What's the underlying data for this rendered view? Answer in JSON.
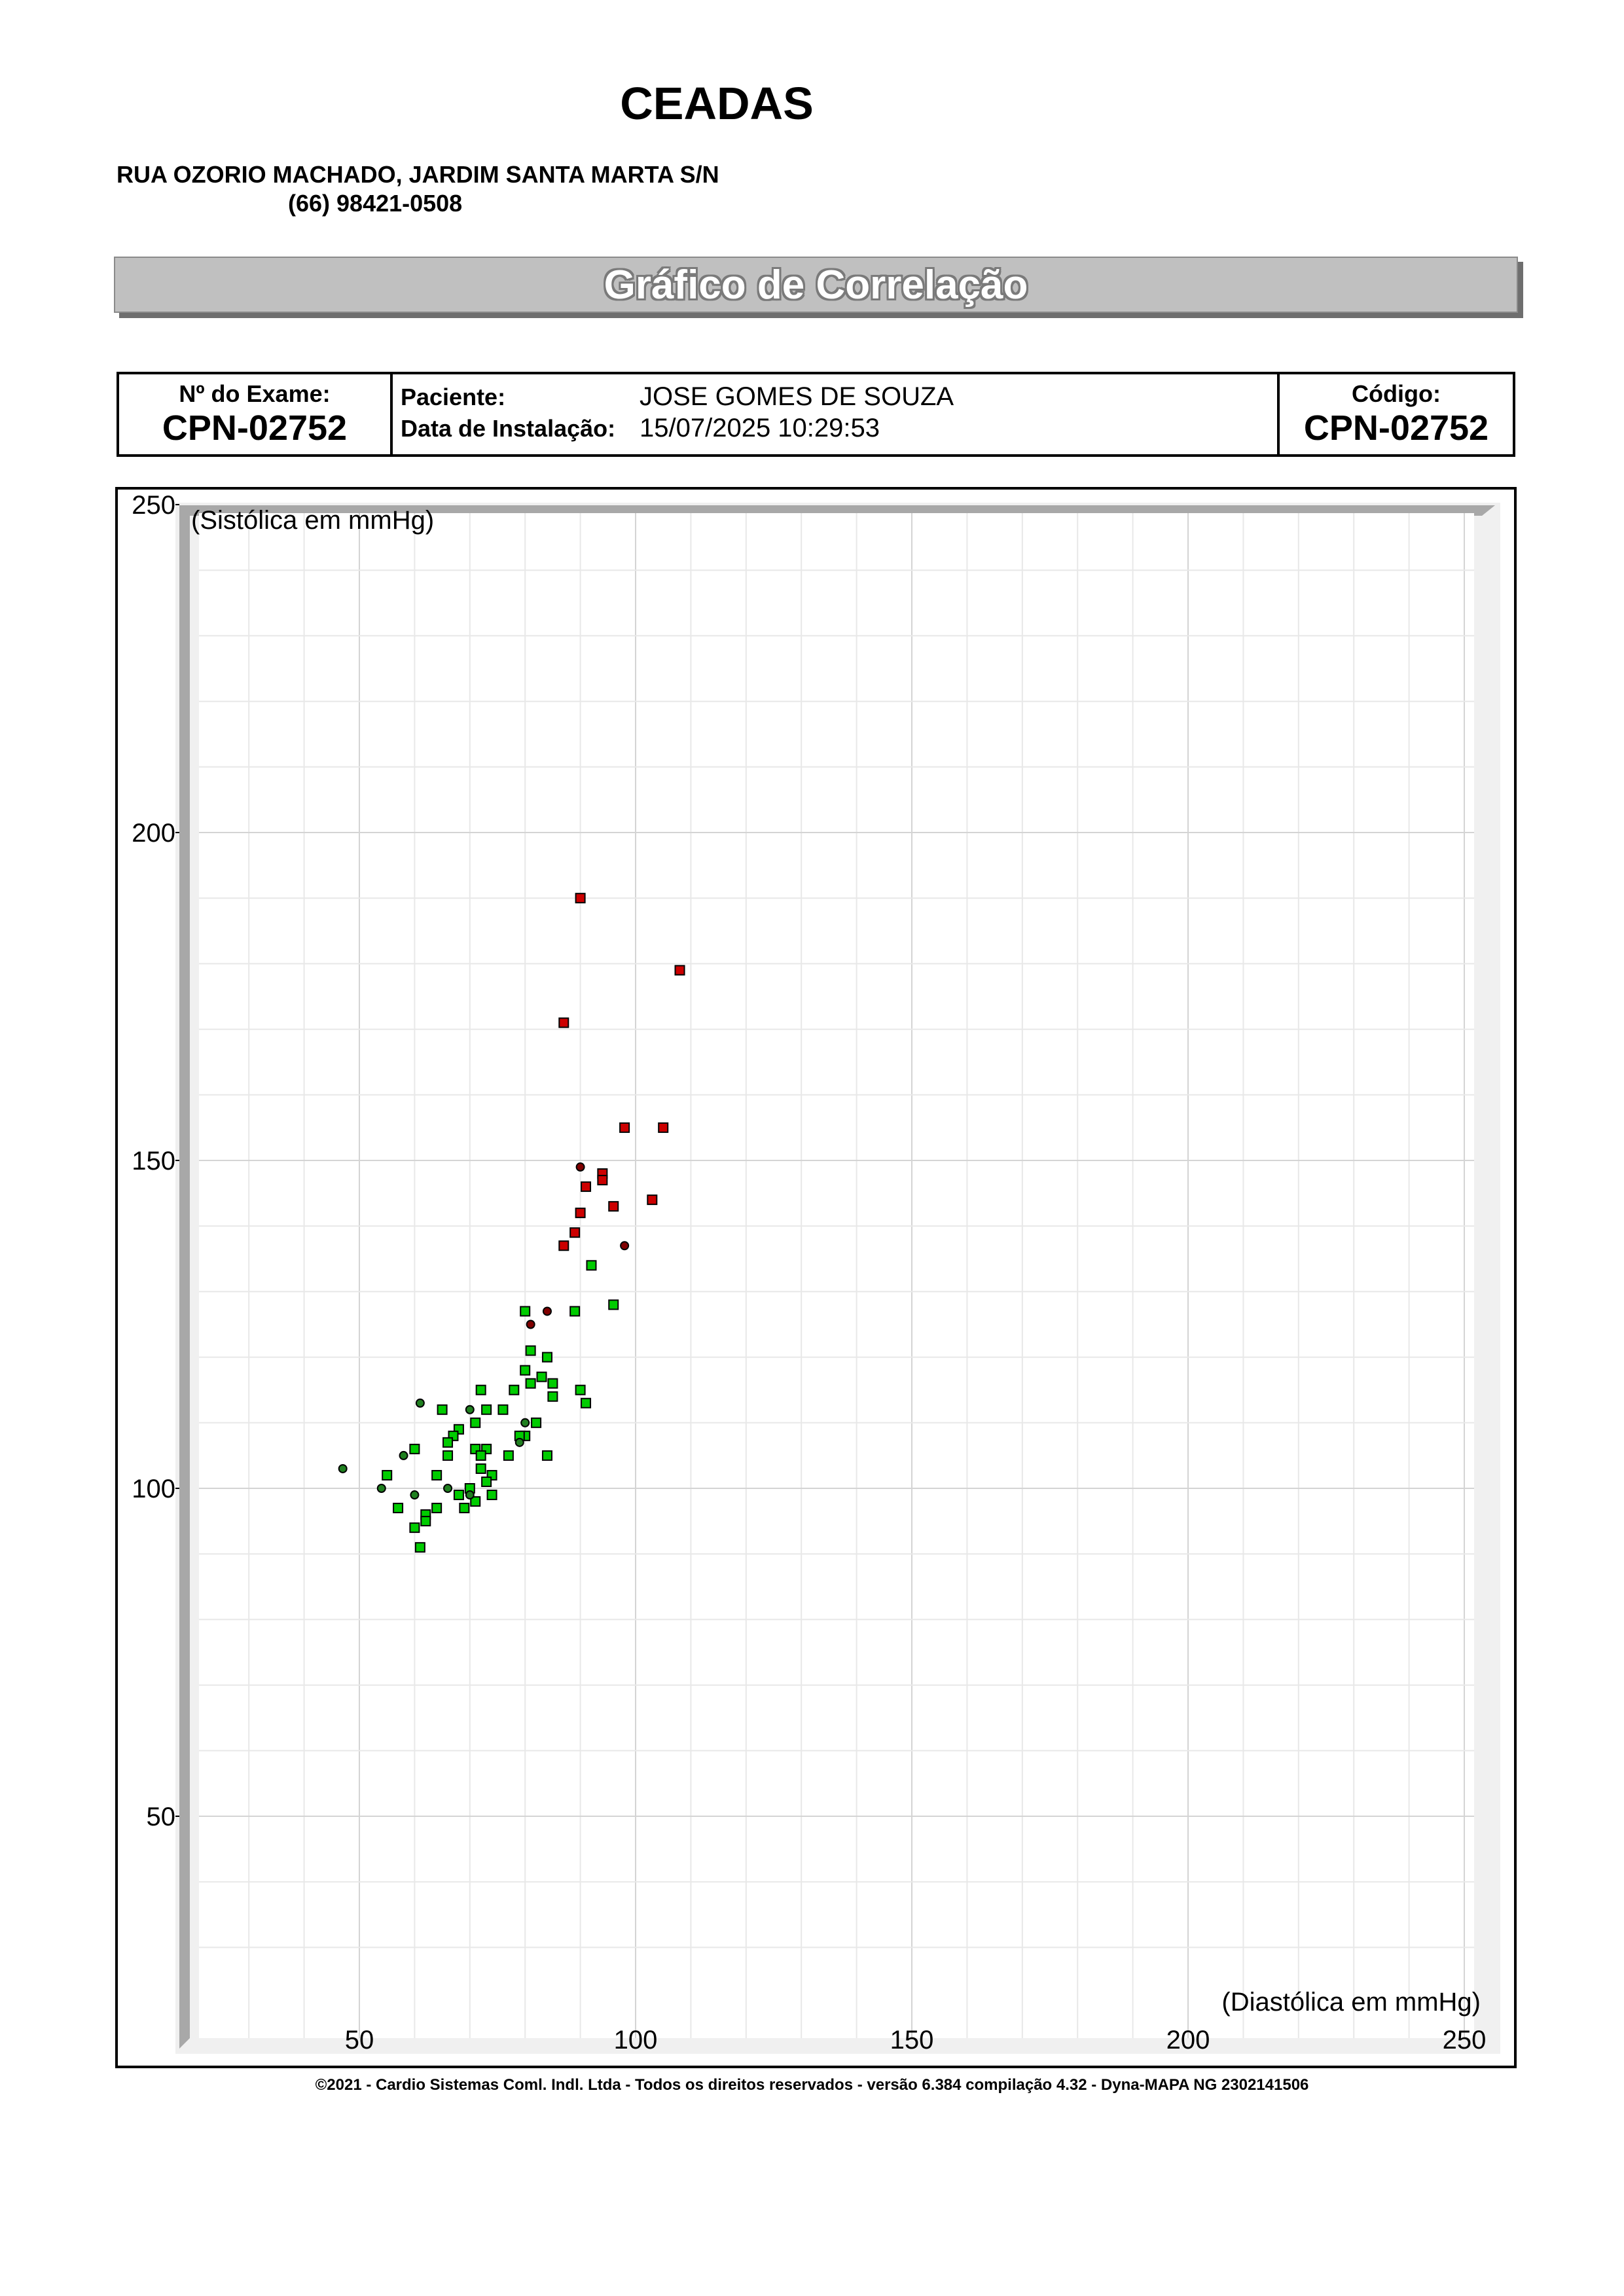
{
  "header": {
    "clinic_name": "CEADAS",
    "address": "RUA OZORIO MACHADO, JARDIM SANTA MARTA S/N",
    "phone": "(66) 98421-0508"
  },
  "title": "Gráfico de Correlação",
  "info": {
    "exam_label": "Nº do Exame:",
    "exam_number": "CPN-02752",
    "patient_label": "Paciente:",
    "patient_name": "JOSE GOMES DE  SOUZA",
    "install_label": "Data de Instalação:",
    "install_date": "15/07/2025 10:29:53",
    "code_label": "Código:",
    "code_value": "CPN-02752"
  },
  "colors": {
    "high": "#cc0000",
    "normal": "#00cc00",
    "high_dark": "#800000",
    "normal_dark": "#208020"
  },
  "chart_data": {
    "type": "scatter",
    "xlabel": "(Diastólica em mmHg)",
    "ylabel": "(Sistólica em mmHg)",
    "xlim": [
      20,
      253
    ],
    "ylim": [
      20,
      250
    ],
    "xticks": [
      50,
      100,
      150,
      200,
      250
    ],
    "yticks": [
      50,
      100,
      150,
      200,
      250
    ],
    "grid": true,
    "series": [
      {
        "color": "red",
        "marker": "square",
        "points": [
          [
            90,
            190
          ],
          [
            108,
            179
          ],
          [
            87,
            171
          ],
          [
            98,
            155
          ],
          [
            105,
            155
          ],
          [
            94,
            148
          ],
          [
            94,
            147
          ],
          [
            91,
            146
          ],
          [
            103,
            144
          ],
          [
            96,
            143
          ],
          [
            90,
            142
          ],
          [
            89,
            139
          ],
          [
            87,
            137
          ]
        ]
      },
      {
        "color": "dark-red",
        "marker": "circle",
        "points": [
          [
            90,
            149
          ],
          [
            98,
            137
          ],
          [
            84,
            127
          ],
          [
            81,
            125
          ]
        ]
      },
      {
        "color": "green",
        "marker": "square",
        "points": [
          [
            96,
            128
          ],
          [
            89,
            127
          ],
          [
            80,
            127
          ],
          [
            92,
            134
          ],
          [
            81,
            121
          ],
          [
            84,
            120
          ],
          [
            80,
            118
          ],
          [
            83,
            117
          ],
          [
            85,
            116
          ],
          [
            81,
            116
          ],
          [
            90,
            115
          ],
          [
            78,
            115
          ],
          [
            72,
            115
          ],
          [
            85,
            114
          ],
          [
            91,
            113
          ],
          [
            65,
            112
          ],
          [
            73,
            112
          ],
          [
            76,
            112
          ],
          [
            71,
            110
          ],
          [
            82,
            110
          ],
          [
            68,
            109
          ],
          [
            67,
            108
          ],
          [
            80,
            108
          ],
          [
            66,
            107
          ],
          [
            60,
            106
          ],
          [
            71,
            106
          ],
          [
            73,
            106
          ],
          [
            72,
            105
          ],
          [
            66,
            105
          ],
          [
            77,
            105
          ],
          [
            84,
            105
          ],
          [
            72,
            103
          ],
          [
            55,
            102
          ],
          [
            64,
            102
          ],
          [
            74,
            102
          ],
          [
            73,
            101
          ],
          [
            70,
            100
          ],
          [
            68,
            99
          ],
          [
            74,
            99
          ],
          [
            71,
            98
          ],
          [
            57,
            97
          ],
          [
            64,
            97
          ],
          [
            69,
            97
          ],
          [
            62,
            96
          ],
          [
            62,
            95
          ],
          [
            60,
            94
          ],
          [
            61,
            91
          ],
          [
            79,
            108
          ]
        ]
      },
      {
        "color": "dark-green",
        "marker": "circle",
        "points": [
          [
            47,
            103
          ],
          [
            54,
            100
          ],
          [
            61,
            113
          ],
          [
            58,
            105
          ],
          [
            60,
            99
          ],
          [
            66,
            100
          ],
          [
            70,
            112
          ],
          [
            79,
            107
          ],
          [
            80,
            110
          ],
          [
            70,
            99
          ]
        ]
      }
    ]
  },
  "footer": "©2021 - Cardio Sistemas Coml. Indl. Ltda - Todos os direitos reservados - versão 6.384 compilação 4.32 - Dyna-MAPA NG 2302141506"
}
